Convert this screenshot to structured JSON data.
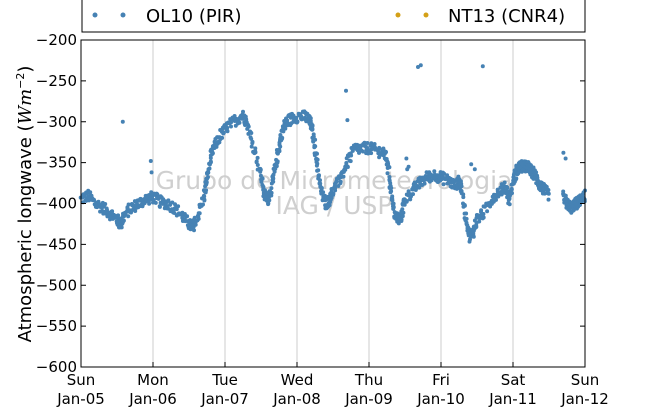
{
  "chart_data": {
    "type": "scatter",
    "title": "",
    "xlabel": "",
    "ylabel_main": "Atmospheric longwave (",
    "ylabel_unit_base": "Wm",
    "ylabel_unit_exp": "−2",
    "ylabel_close": ")",
    "ylim": [
      -600,
      -200
    ],
    "yticks": [
      -200,
      -250,
      -300,
      -350,
      -400,
      -450,
      -500,
      -550,
      -600
    ],
    "ytick_labels": [
      "−200",
      "−250",
      "−300",
      "−350",
      "−400",
      "−450",
      "−500",
      "−550",
      "−600"
    ],
    "x_unit": "days since Sun Jan-05 00:00",
    "xlim": [
      0,
      7
    ],
    "xticks": [
      {
        "day": "Sun",
        "date": "Jan-05"
      },
      {
        "day": "Mon",
        "date": "Jan-06"
      },
      {
        "day": "Tue",
        "date": "Jan-07"
      },
      {
        "day": "Wed",
        "date": "Jan-08"
      },
      {
        "day": "Thu",
        "date": "Jan-09"
      },
      {
        "day": "Fri",
        "date": "Jan-10"
      },
      {
        "day": "Sat",
        "date": "Jan-11"
      },
      {
        "day": "Sun",
        "date": "Jan-12"
      }
    ],
    "grid": "vertical",
    "legend_position": "top",
    "watermark": [
      "Grupo de Micrometeorologia",
      "IAG / USP"
    ],
    "series": [
      {
        "name": "OL10 (PIR)",
        "color": "#4682b4",
        "outliers": [
          [
            0.58,
            -300
          ],
          [
            3.68,
            -262
          ],
          [
            3.7,
            -298
          ],
          [
            4.68,
            -233
          ],
          [
            4.72,
            -231
          ],
          [
            5.58,
            -232
          ],
          [
            5.42,
            -352
          ],
          [
            5.47,
            -358
          ],
          [
            4.52,
            -345
          ],
          [
            4.55,
            -355
          ],
          [
            4.53,
            -358
          ],
          [
            3.67,
            -355
          ],
          [
            6.7,
            -338
          ],
          [
            6.73,
            -345
          ],
          [
            0.97,
            -348
          ],
          [
            0.98,
            -362
          ]
        ],
        "trace": [
          [
            0.0,
            -395
          ],
          [
            0.1,
            -390
          ],
          [
            0.2,
            -400
          ],
          [
            0.3,
            -405
          ],
          [
            0.4,
            -412
          ],
          [
            0.5,
            -420
          ],
          [
            0.55,
            -425
          ],
          [
            0.6,
            -415
          ],
          [
            0.7,
            -405
          ],
          [
            0.8,
            -400
          ],
          [
            0.9,
            -395
          ],
          [
            1.0,
            -392
          ],
          [
            1.1,
            -398
          ],
          [
            1.2,
            -400
          ],
          [
            1.3,
            -405
          ],
          [
            1.4,
            -415
          ],
          [
            1.5,
            -425
          ],
          [
            1.55,
            -430
          ],
          [
            1.6,
            -420
          ],
          [
            1.7,
            -395
          ],
          [
            1.75,
            -370
          ],
          [
            1.8,
            -345
          ],
          [
            1.85,
            -330
          ],
          [
            1.95,
            -315
          ],
          [
            2.05,
            -305
          ],
          [
            2.15,
            -298
          ],
          [
            2.25,
            -292
          ],
          [
            2.3,
            -300
          ],
          [
            2.4,
            -330
          ],
          [
            2.5,
            -365
          ],
          [
            2.55,
            -390
          ],
          [
            2.6,
            -395
          ],
          [
            2.65,
            -380
          ],
          [
            2.7,
            -355
          ],
          [
            2.75,
            -330
          ],
          [
            2.8,
            -310
          ],
          [
            2.85,
            -300
          ],
          [
            2.95,
            -295
          ],
          [
            3.05,
            -293
          ],
          [
            3.15,
            -295
          ],
          [
            3.2,
            -305
          ],
          [
            3.25,
            -330
          ],
          [
            3.3,
            -365
          ],
          [
            3.35,
            -390
          ],
          [
            3.4,
            -400
          ],
          [
            3.45,
            -395
          ],
          [
            3.5,
            -385
          ],
          [
            3.6,
            -370
          ],
          [
            3.7,
            -350
          ],
          [
            3.8,
            -333
          ],
          [
            3.9,
            -333
          ],
          [
            4.0,
            -332
          ],
          [
            4.1,
            -335
          ],
          [
            4.2,
            -338
          ],
          [
            4.25,
            -345
          ],
          [
            4.3,
            -380
          ],
          [
            4.35,
            -410
          ],
          [
            4.4,
            -420
          ],
          [
            4.45,
            -415
          ],
          [
            4.5,
            -395
          ],
          [
            4.6,
            -385
          ],
          [
            4.7,
            -375
          ],
          [
            4.8,
            -368
          ],
          [
            4.9,
            -365
          ],
          [
            5.0,
            -368
          ],
          [
            5.1,
            -372
          ],
          [
            5.2,
            -378
          ],
          [
            5.25,
            -372
          ],
          [
            5.28,
            -380
          ],
          [
            5.35,
            -420
          ],
          [
            5.4,
            -440
          ],
          [
            5.45,
            -435
          ],
          [
            5.5,
            -420
          ],
          [
            5.6,
            -410
          ],
          [
            5.7,
            -395
          ],
          [
            5.8,
            -385
          ],
          [
            5.9,
            -380
          ],
          [
            5.95,
            -395
          ],
          [
            6.0,
            -372
          ],
          [
            6.05,
            -360
          ],
          [
            6.1,
            -355
          ],
          [
            6.15,
            -355
          ],
          [
            6.2,
            -355
          ],
          [
            6.25,
            -360
          ],
          [
            6.3,
            -365
          ],
          [
            6.35,
            -375
          ],
          [
            6.4,
            -380
          ],
          [
            6.45,
            -385
          ],
          [
            6.5,
            -390
          ],
          null,
          [
            6.7,
            -392
          ],
          [
            6.75,
            -400
          ],
          [
            6.8,
            -405
          ],
          [
            6.85,
            -402
          ],
          [
            6.9,
            -398
          ],
          [
            6.95,
            -395
          ],
          [
            7.0,
            -390
          ]
        ]
      },
      {
        "name": "NT13 (CNR4)",
        "color": "#d4a017",
        "trace": []
      }
    ]
  }
}
